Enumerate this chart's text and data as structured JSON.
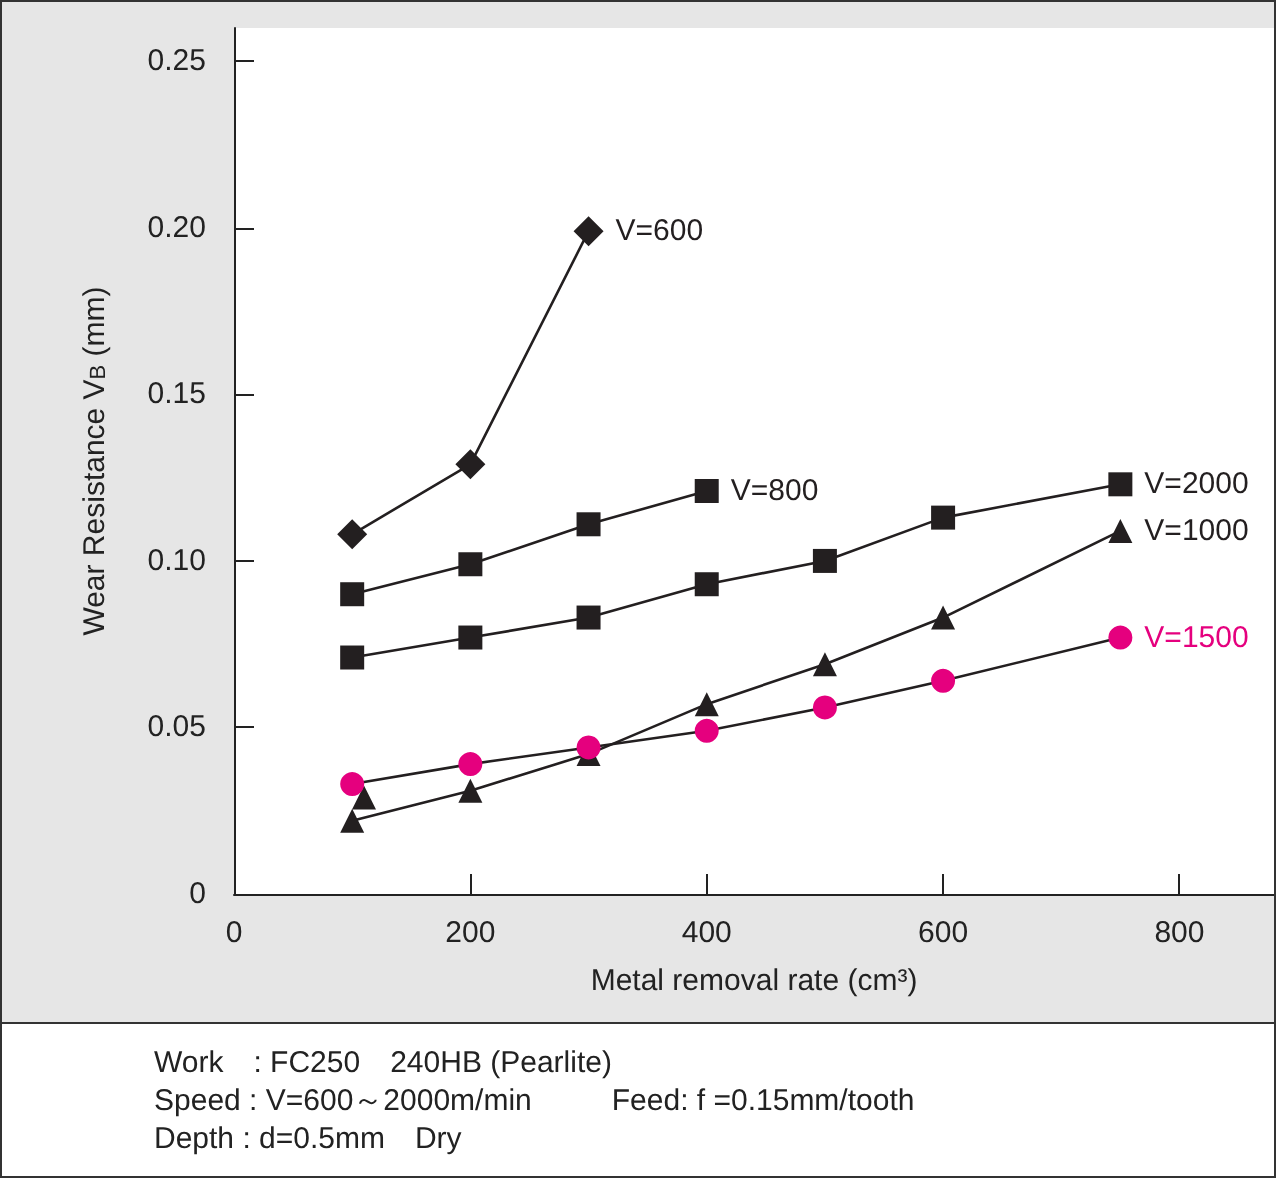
{
  "chart_data": {
    "type": "line",
    "xlabel": "Metal removal rate (cm³)",
    "ylabel": "Wear Resistance V$_{B}$ (mm)",
    "xlim": [
      0,
      880
    ],
    "xticks": [
      0,
      200,
      400,
      600,
      800
    ],
    "ylim": [
      0,
      0.26
    ],
    "yticks": [
      0,
      {
        "value": 0.05,
        "label": "0.05"
      },
      {
        "value": 0.1,
        "label": "0.10"
      },
      {
        "value": 0.15,
        "label": "0.15"
      },
      {
        "value": 0.2,
        "label": "0.20"
      },
      {
        "value": 0.25,
        "label": "0.25"
      }
    ],
    "grid": false,
    "legend": false,
    "line_style": "solid",
    "series": [
      {
        "name": "V=600",
        "color": "#231f20",
        "marker": "diamond",
        "x": [
          100,
          200,
          300
        ],
        "values": [
          0.108,
          0.129,
          0.199
        ]
      },
      {
        "name": "V=800",
        "color": "#231f20",
        "marker": "square",
        "x": [
          100,
          200,
          300,
          400
        ],
        "values": [
          0.09,
          0.099,
          0.111,
          0.121
        ]
      },
      {
        "name": "V=2000",
        "color": "#231f20",
        "marker": "square",
        "x": [
          100,
          200,
          300,
          400,
          500,
          600,
          750
        ],
        "values": [
          0.071,
          0.077,
          0.083,
          0.093,
          0.1,
          0.113,
          0.123
        ]
      },
      {
        "name": "V=1000",
        "color": "#231f20",
        "marker": "triangle",
        "x": [
          100,
          200,
          300,
          400,
          500,
          600,
          750
        ],
        "values": [
          0.022,
          0.031,
          0.042,
          0.057,
          0.069,
          0.083,
          0.109
        ]
      },
      {
        "type": "scatter",
        "color": "#231f20",
        "marker": "triangle",
        "x": [
          110
        ],
        "values": [
          0.029
        ]
      },
      {
        "name": "V=1500",
        "color": "#e5007e",
        "marker": "circle",
        "x": [
          100,
          200,
          300,
          400,
          500,
          600,
          750
        ],
        "values": [
          0.033,
          0.039,
          0.044,
          0.049,
          0.056,
          0.064,
          0.077
        ]
      }
    ],
    "annotations": [
      "Work　: FC250　240HB (Pearlite)",
      "Speed : V=600～2000m/min",
      "Feed: f =0.15mm/tooth",
      "Depth : d=0.5mm　Dry"
    ]
  }
}
